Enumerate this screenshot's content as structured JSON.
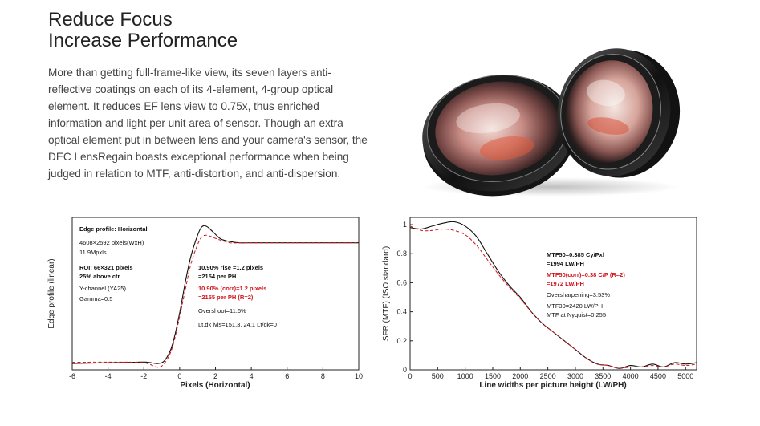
{
  "colors": {
    "primary_line": "#111111",
    "corrected_line": "#d0151b"
  },
  "section": {
    "title_line1": "Reduce Focus",
    "title_line2": "Increase Performance",
    "description": "More than getting full-frame-like view, its seven layers anti-reflective coatings on each of its 4-element, 4-group optical element. It reduces EF lens view to 0.75x, thus enriched information and light per unit area of sensor. Though an extra optical element put in between lens and your camera's sensor, the DEC LensRegain boasts exceptional performance when being judged in relation to MTF, anti-distortion, and anti-dispersion."
  },
  "chart_data": [
    {
      "type": "line",
      "xlabel": "Pixels (Horizontal)",
      "ylabel": "Edge profile (linear)",
      "xlim": [
        -6,
        10
      ],
      "ylim": [
        0,
        1.2
      ],
      "x_ticks": [
        "-6",
        "-4",
        "-2",
        "0",
        "2",
        "4",
        "6",
        "8",
        "10"
      ],
      "grid": false,
      "annotations": {
        "line1": "Edge profile: Horizontal",
        "line2": "4608×2592 pixels(WxH)",
        "line3": "11.9Mpxls",
        "line4": "ROI: 66×321 pixels",
        "line5": "25% above ctr",
        "line6": "Y-channel (YA25)",
        "line7": "Gamma=0.5",
        "line8": "10.90% rise =1.2 pixels",
        "line9": "=2154 per PH",
        "line10": "10.90% (corr)=1.2 pixels",
        "line11": "=2155 per PH (R=2)",
        "line12": "Overshoot=11.6%",
        "line13": "Lt,dk lvls=151.3, 24.1  Lt/dk=0"
      },
      "series": [
        {
          "x": [
            -6,
            -2.5,
            -1.8,
            -1.2,
            -0.8,
            -0.4,
            0,
            0.3,
            0.6,
            0.9,
            1.2,
            1.5,
            1.9,
            2.3,
            2.8,
            3.3,
            4,
            5,
            7,
            10
          ],
          "values": [
            0.05,
            0.06,
            0.06,
            0.05,
            0.08,
            0.2,
            0.45,
            0.68,
            0.88,
            1.02,
            1.12,
            1.13,
            1.08,
            1.03,
            1.01,
            1.0,
            1.0,
            1.0,
            1.0,
            1.0
          ]
        },
        {
          "x": [
            -6,
            -2.5,
            -1.8,
            -1.2,
            -0.8,
            -0.4,
            0,
            0.3,
            0.6,
            0.9,
            1.2,
            1.5,
            1.9,
            2.3,
            2.8,
            3.3,
            4,
            5,
            7,
            10
          ],
          "values": [
            0.06,
            0.06,
            0.05,
            0.02,
            0.06,
            0.18,
            0.42,
            0.62,
            0.82,
            0.95,
            1.04,
            1.06,
            1.04,
            1.02,
            1.0,
            1.0,
            1.0,
            1.0,
            1.0,
            1.0
          ]
        }
      ]
    },
    {
      "type": "line",
      "xlabel": "Line widths per picture height (LW/PH)",
      "ylabel": "SFR (MTF) (ISO standard)",
      "xlim": [
        0,
        5200
      ],
      "ylim": [
        0,
        1.05
      ],
      "x_ticks": [
        "0",
        "500",
        "1000",
        "1500",
        "2000",
        "2500",
        "3000",
        "3500",
        "4000",
        "4500",
        "5000"
      ],
      "y_ticks": [
        "0",
        "0.2",
        "0.4",
        "0.6",
        "0.8",
        "1"
      ],
      "grid": false,
      "annotations": {
        "line1": "MTF50=0.385 Cy/Pxl",
        "line2": "=1994 LW/PH",
        "line3": "MTF50(corr)=0.38 C/P (R=2)",
        "line4": "=1972 LW/PH",
        "line5": "Oversharpening=3.53%",
        "line6": "MTF30=2420 LW/PH",
        "line7": "MTF at Nyquist=0.255"
      },
      "series": [
        {
          "x": [
            0,
            200,
            400,
            600,
            800,
            1000,
            1200,
            1400,
            1600,
            1800,
            2000,
            2200,
            2400,
            2600,
            2800,
            3000,
            3200,
            3400,
            3600,
            3800,
            4000,
            4200,
            4400,
            4600,
            4800,
            5000,
            5200
          ],
          "values": [
            0.98,
            0.97,
            0.99,
            1.01,
            1.02,
            0.99,
            0.92,
            0.8,
            0.68,
            0.58,
            0.5,
            0.4,
            0.32,
            0.26,
            0.2,
            0.14,
            0.08,
            0.04,
            0.03,
            0.01,
            0.03,
            0.02,
            0.04,
            0.02,
            0.05,
            0.04,
            0.05
          ]
        },
        {
          "x": [
            0,
            200,
            400,
            600,
            800,
            1000,
            1200,
            1400,
            1600,
            1800,
            2000,
            2200,
            2400,
            2600,
            2800,
            3000,
            3200,
            3400,
            3600,
            3800,
            4000,
            4200,
            4400,
            4600,
            4800,
            5000,
            5200
          ],
          "values": [
            0.99,
            0.96,
            0.96,
            0.97,
            0.96,
            0.93,
            0.86,
            0.76,
            0.66,
            0.57,
            0.49,
            0.4,
            0.32,
            0.26,
            0.2,
            0.14,
            0.08,
            0.04,
            0.03,
            0.01,
            0.02,
            0.02,
            0.03,
            0.02,
            0.04,
            0.03,
            0.04
          ]
        }
      ]
    }
  ]
}
